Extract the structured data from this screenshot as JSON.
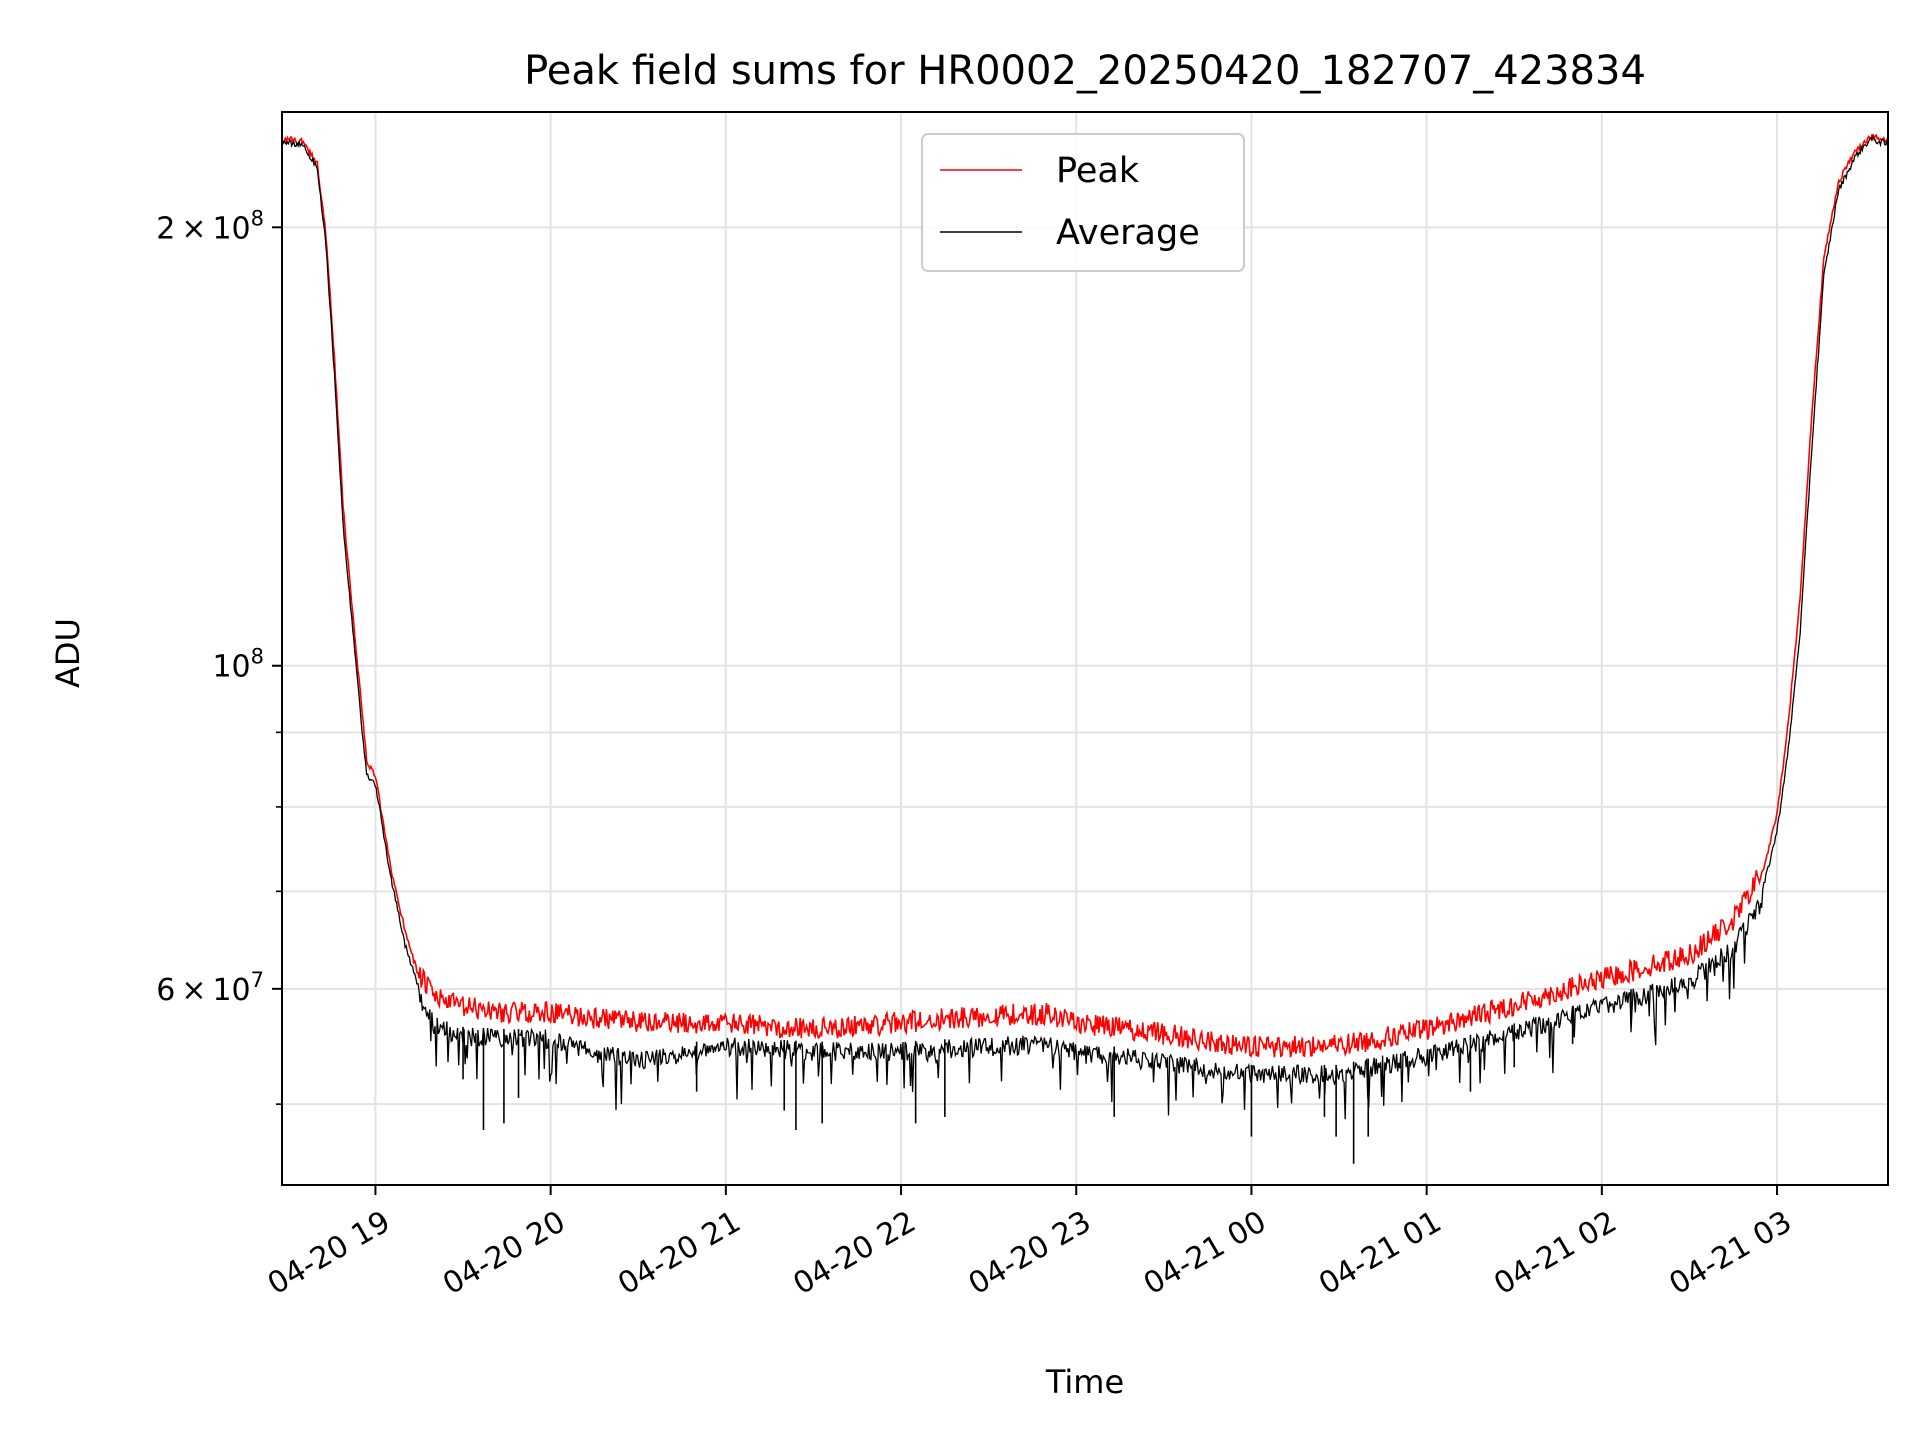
{
  "chart_data": {
    "type": "line",
    "title": "Peak field sums for HR0002_20250420_182707_423834",
    "xlabel": "Time",
    "ylabel": "ADU",
    "x_axis": {
      "kind": "time",
      "range": [
        "2025-04-20T18:28",
        "2025-04-21T03:38"
      ],
      "ticks": [
        {
          "t": "2025-04-20T19:00",
          "label": "04-20 19"
        },
        {
          "t": "2025-04-20T20:00",
          "label": "04-20 20"
        },
        {
          "t": "2025-04-20T21:00",
          "label": "04-20 21"
        },
        {
          "t": "2025-04-20T22:00",
          "label": "04-20 22"
        },
        {
          "t": "2025-04-20T23:00",
          "label": "04-20 23"
        },
        {
          "t": "2025-04-21T00:00",
          "label": "04-21 00"
        },
        {
          "t": "2025-04-21T01:00",
          "label": "04-21 01"
        },
        {
          "t": "2025-04-21T02:00",
          "label": "04-21 02"
        },
        {
          "t": "2025-04-21T03:00",
          "label": "04-21 03"
        }
      ]
    },
    "y_axis": {
      "scale": "log",
      "range": [
        44000000,
        240000000
      ],
      "major_ticks": [
        {
          "value": 60000000,
          "label_mant": "6 × 10",
          "label_exp": "7"
        },
        {
          "value": 100000000,
          "label_mant": "10",
          "label_exp": "8"
        },
        {
          "value": 200000000,
          "label_mant": "2 × 10",
          "label_exp": "8"
        }
      ],
      "minor_ticks": [
        50000000,
        70000000,
        80000000,
        90000000
      ]
    },
    "grid": true,
    "legend": {
      "position": "upper-center",
      "entries": [
        {
          "name": "Peak",
          "color": "#ff0000"
        },
        {
          "name": "Average",
          "color": "#000000"
        }
      ]
    },
    "series": [
      {
        "name": "Peak",
        "color": "#ff0000",
        "points": [
          [
            "2025-04-20T18:28",
            230000000
          ],
          [
            "2025-04-20T18:35",
            229000000
          ],
          [
            "2025-04-20T18:40",
            222000000
          ],
          [
            "2025-04-20T18:43",
            198000000
          ],
          [
            "2025-04-20T18:46",
            162000000
          ],
          [
            "2025-04-20T18:49",
            128000000
          ],
          [
            "2025-04-20T18:52",
            110000000
          ],
          [
            "2025-04-20T18:55",
            95000000
          ],
          [
            "2025-04-20T18:57",
            86000000
          ],
          [
            "2025-04-20T19:00",
            84000000
          ],
          [
            "2025-04-20T19:05",
            73000000
          ],
          [
            "2025-04-20T19:10",
            66000000
          ],
          [
            "2025-04-20T19:15",
            61000000
          ],
          [
            "2025-04-20T19:20",
            59000000
          ],
          [
            "2025-04-20T19:30",
            58000000
          ],
          [
            "2025-04-20T19:45",
            57500000
          ],
          [
            "2025-04-20T20:00",
            57500000
          ],
          [
            "2025-04-20T20:15",
            57000000
          ],
          [
            "2025-04-20T20:30",
            56600000
          ],
          [
            "2025-04-20T21:00",
            56500000
          ],
          [
            "2025-04-20T21:30",
            56000000
          ],
          [
            "2025-04-20T22:00",
            56600000
          ],
          [
            "2025-04-20T22:30",
            57200000
          ],
          [
            "2025-04-20T22:50",
            57400000
          ],
          [
            "2025-04-20T23:00",
            56600000
          ],
          [
            "2025-04-20T23:30",
            55600000
          ],
          [
            "2025-04-21T00:00",
            54400000
          ],
          [
            "2025-04-21T00:30",
            54600000
          ],
          [
            "2025-04-21T00:45",
            55200000
          ],
          [
            "2025-04-21T01:00",
            56000000
          ],
          [
            "2025-04-21T01:30",
            58200000
          ],
          [
            "2025-04-21T02:00",
            60600000
          ],
          [
            "2025-04-21T02:30",
            63000000
          ],
          [
            "2025-04-21T02:45",
            66500000
          ],
          [
            "2025-04-21T02:55",
            72000000
          ],
          [
            "2025-04-21T03:00",
            79000000
          ],
          [
            "2025-04-21T03:04",
            92000000
          ],
          [
            "2025-04-21T03:08",
            112000000
          ],
          [
            "2025-04-21T03:12",
            150000000
          ],
          [
            "2025-04-21T03:16",
            190000000
          ],
          [
            "2025-04-21T03:21",
            215000000
          ],
          [
            "2025-04-21T03:27",
            226000000
          ],
          [
            "2025-04-21T03:32",
            231000000
          ],
          [
            "2025-04-21T03:38",
            229000000
          ]
        ]
      },
      {
        "name": "Average",
        "color": "#000000",
        "points": [
          [
            "2025-04-20T18:28",
            229000000
          ],
          [
            "2025-04-20T18:35",
            228000000
          ],
          [
            "2025-04-20T18:40",
            220000000
          ],
          [
            "2025-04-20T18:43",
            195000000
          ],
          [
            "2025-04-20T18:46",
            158000000
          ],
          [
            "2025-04-20T18:49",
            124000000
          ],
          [
            "2025-04-20T18:52",
            107000000
          ],
          [
            "2025-04-20T18:55",
            92000000
          ],
          [
            "2025-04-20T18:57",
            84000000
          ],
          [
            "2025-04-20T19:00",
            83000000
          ],
          [
            "2025-04-20T19:05",
            72000000
          ],
          [
            "2025-04-20T19:10",
            64500000
          ],
          [
            "2025-04-20T19:15",
            60000000
          ],
          [
            "2025-04-20T19:20",
            57500000
          ],
          [
            "2025-04-20T19:30",
            56500000
          ],
          [
            "2025-04-20T19:45",
            56300000
          ],
          [
            "2025-04-20T20:00",
            56300000
          ],
          [
            "2025-04-20T20:15",
            55000000
          ],
          [
            "2025-04-20T20:30",
            54400000
          ],
          [
            "2025-04-20T21:00",
            55600000
          ],
          [
            "2025-04-20T21:30",
            55200000
          ],
          [
            "2025-04-20T22:00",
            55200000
          ],
          [
            "2025-04-20T22:30",
            55600000
          ],
          [
            "2025-04-20T22:50",
            55800000
          ],
          [
            "2025-04-20T23:00",
            55200000
          ],
          [
            "2025-04-20T23:30",
            54200000
          ],
          [
            "2025-04-21T00:00",
            53200000
          ],
          [
            "2025-04-21T00:30",
            53200000
          ],
          [
            "2025-04-21T00:45",
            54000000
          ],
          [
            "2025-04-21T01:00",
            54800000
          ],
          [
            "2025-04-21T01:30",
            56800000
          ],
          [
            "2025-04-21T02:00",
            59200000
          ],
          [
            "2025-04-21T02:30",
            61500000
          ],
          [
            "2025-04-21T02:45",
            65000000
          ],
          [
            "2025-04-21T02:55",
            70000000
          ],
          [
            "2025-04-21T03:00",
            77000000
          ],
          [
            "2025-04-21T03:04",
            88000000
          ],
          [
            "2025-04-21T03:08",
            106000000
          ],
          [
            "2025-04-21T03:12",
            142000000
          ],
          [
            "2025-04-21T03:16",
            185000000
          ],
          [
            "2025-04-21T03:21",
            212000000
          ],
          [
            "2025-04-21T03:27",
            224000000
          ],
          [
            "2025-04-21T03:32",
            230000000
          ],
          [
            "2025-04-21T03:38",
            228000000
          ]
        ],
        "dips": [
          [
            "2025-04-20T19:30",
            52000000
          ],
          [
            "2025-04-20T19:37",
            48000000
          ],
          [
            "2025-04-20T19:44",
            48500000
          ],
          [
            "2025-04-20T19:49",
            50500000
          ],
          [
            "2025-04-20T20:50",
            51000000
          ],
          [
            "2025-04-20T21:20",
            49500000
          ],
          [
            "2025-04-20T21:24",
            48000000
          ],
          [
            "2025-04-20T21:33",
            48500000
          ],
          [
            "2025-04-20T22:05",
            48500000
          ],
          [
            "2025-04-20T22:15",
            49000000
          ],
          [
            "2025-04-20T23:13",
            49000000
          ],
          [
            "2025-04-21T00:00",
            47500000
          ],
          [
            "2025-04-21T00:25",
            49000000
          ],
          [
            "2025-04-21T00:29",
            47500000
          ],
          [
            "2025-04-21T00:35",
            45500000
          ],
          [
            "2025-04-21T00:40",
            47500000
          ],
          [
            "2025-04-21T01:15",
            51000000
          ],
          [
            "2025-04-21T01:30",
            53000000
          ],
          [
            "2025-04-21T01:50",
            55000000
          ],
          [
            "2025-04-21T02:10",
            57000000
          ],
          [
            "2025-04-21T02:25",
            58000000
          ]
        ]
      }
    ]
  }
}
